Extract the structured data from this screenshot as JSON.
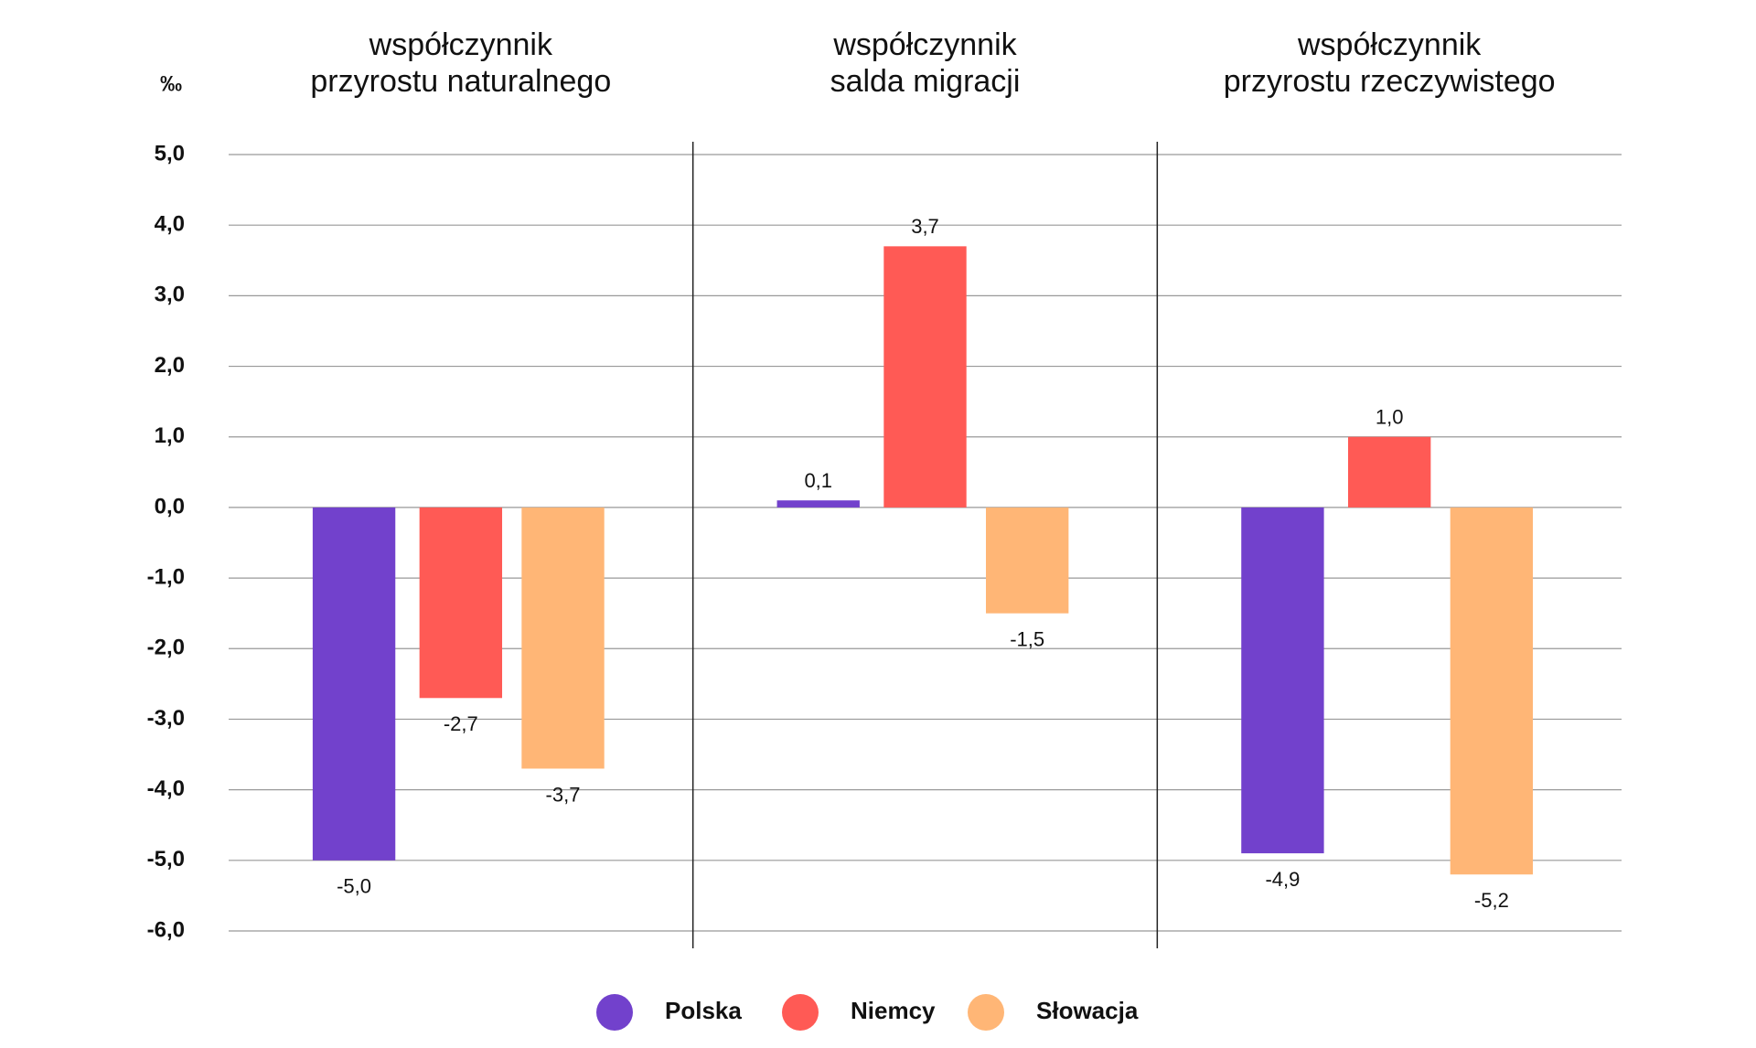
{
  "chart_data": {
    "type": "bar",
    "unit_label": "‰",
    "categories": [
      [
        "współczynnik",
        "przyrostu naturalnego"
      ],
      [
        "współczynnik",
        "salda migracji"
      ],
      [
        "współczynnik",
        "przyrostu rzeczywistego"
      ]
    ],
    "series": [
      {
        "name": "Polska",
        "color": "#7241cc",
        "values": [
          -5.0,
          0.1,
          -4.9
        ],
        "value_labels": [
          "-5,0",
          "0,1",
          "-4,9"
        ]
      },
      {
        "name": "Niemcy",
        "color": "#ff5a55",
        "values": [
          -2.7,
          3.7,
          1.0
        ],
        "value_labels": [
          "-2,7",
          "3,7",
          "1,0"
        ]
      },
      {
        "name": "Słowacja",
        "color": "#ffb676",
        "values": [
          -3.7,
          -1.5,
          -5.2
        ],
        "value_labels": [
          "-3,7",
          "-1,5",
          "-5,2"
        ]
      }
    ],
    "ylim": [
      -6,
      5
    ],
    "yticks": [
      {
        "value": -6,
        "label": "-6,0"
      },
      {
        "value": -5,
        "label": "-5,0"
      },
      {
        "value": -4,
        "label": "-4,0"
      },
      {
        "value": -3,
        "label": "-3,0"
      },
      {
        "value": -2,
        "label": "-2,0"
      },
      {
        "value": -1,
        "label": "-1,0"
      },
      {
        "value": 0,
        "label": "0,0"
      },
      {
        "value": 1,
        "label": "1,0"
      },
      {
        "value": 2,
        "label": "2,0"
      },
      {
        "value": 3,
        "label": "3,0"
      },
      {
        "value": 4,
        "label": "4,0"
      },
      {
        "value": 5,
        "label": "5,0"
      }
    ],
    "grid": true
  }
}
